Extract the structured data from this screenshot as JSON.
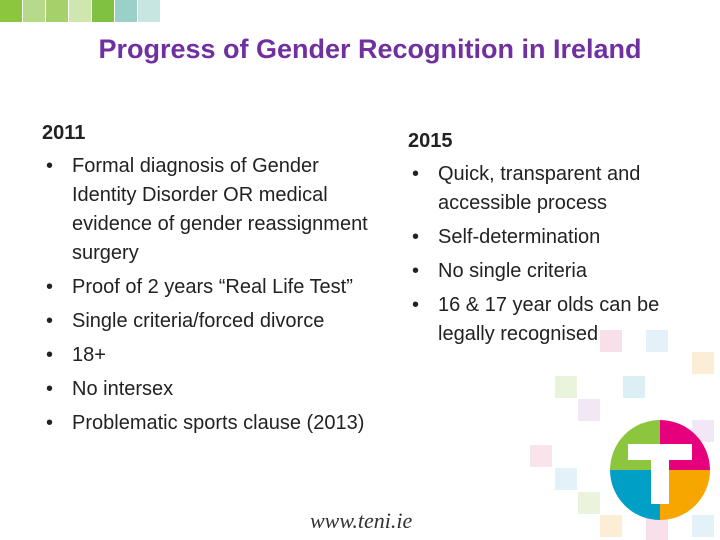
{
  "header": {
    "title": "Progress of Gender Recognition in Ireland"
  },
  "columns": [
    {
      "heading": "2011",
      "items": [
        "Formal diagnosis of Gender Identity Disorder OR medical evidence of gender reassignment surgery",
        "Proof of 2 years “Real Life Test”",
        "Single criteria/forced divorce",
        "18+",
        "No intersex",
        "Problematic sports clause (2013)"
      ]
    },
    {
      "heading": "2015",
      "items": [
        "Quick, transparent and accessible process",
        "Self-determination",
        "No single criteria",
        "16 & 17 year olds can be legally recognised"
      ]
    }
  ],
  "footer": {
    "url": "www.teni.ie"
  }
}
